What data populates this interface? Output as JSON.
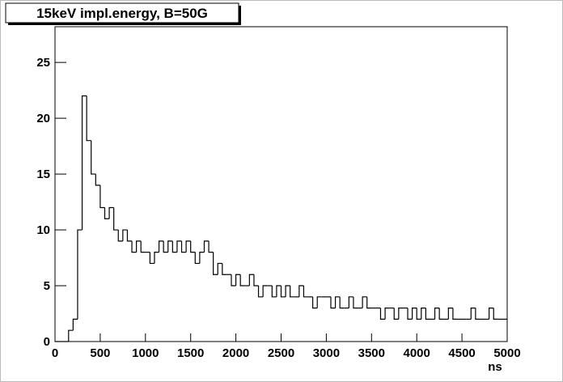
{
  "chart_data": {
    "type": "histogram",
    "title": "15keV impl.energy, B=50G",
    "x_label": "ns",
    "color": "#000000",
    "bins": [
      0,
      50,
      100,
      150,
      200,
      250,
      300,
      350,
      400,
      450,
      500,
      550,
      600,
      650,
      700,
      750,
      800,
      850,
      900,
      950,
      1000,
      1050,
      1100,
      1150,
      1200,
      1250,
      1300,
      1350,
      1400,
      1450,
      1500,
      1550,
      1600,
      1650,
      1700,
      1750,
      1800,
      1850,
      1900,
      1950,
      2000,
      2050,
      2100,
      2150,
      2200,
      2250,
      2300,
      2350,
      2400,
      2450,
      2500,
      2550,
      2600,
      2650,
      2700,
      2750,
      2800,
      2850,
      2900,
      2950,
      3000,
      3050,
      3100,
      3150,
      3200,
      3250,
      3300,
      3350,
      3400,
      3450,
      3500,
      3550,
      3600,
      3650,
      3700,
      3750,
      3800,
      3850,
      3900,
      3950,
      4000,
      4050,
      4100,
      4150,
      4200,
      4250,
      4300,
      4350,
      4400,
      4450,
      4500,
      4550,
      4600,
      4650,
      4700,
      4750,
      4800,
      4850,
      4900,
      4950,
      5000
    ],
    "counts": [
      0,
      0,
      0,
      1,
      2,
      10,
      22,
      18,
      15,
      14,
      12,
      11,
      12,
      10,
      9,
      10,
      9,
      8,
      9,
      8,
      8,
      7,
      8,
      9,
      8,
      9,
      8,
      9,
      8,
      9,
      8,
      7,
      8,
      9,
      8,
      6,
      7,
      6,
      6,
      5,
      6,
      5,
      5,
      6,
      5,
      4,
      5,
      5,
      4,
      5,
      4,
      5,
      4,
      4,
      5,
      4,
      4,
      3,
      4,
      4,
      4,
      3,
      4,
      3,
      3,
      4,
      3,
      3,
      4,
      3,
      3,
      3,
      2,
      3,
      3,
      2,
      3,
      3,
      2,
      3,
      2,
      3,
      2,
      2,
      3,
      2,
      2,
      3,
      2,
      2,
      2,
      2,
      3,
      2,
      2,
      2,
      3,
      2,
      2,
      2
    ],
    "xlim": [
      0,
      5000
    ],
    "xticks": [
      0,
      500,
      1000,
      1500,
      2000,
      2500,
      3000,
      3500,
      4000,
      4500,
      5000
    ],
    "ylim": [
      0,
      28.2
    ],
    "yticks": [
      0,
      5,
      10,
      15,
      20,
      25
    ]
  }
}
